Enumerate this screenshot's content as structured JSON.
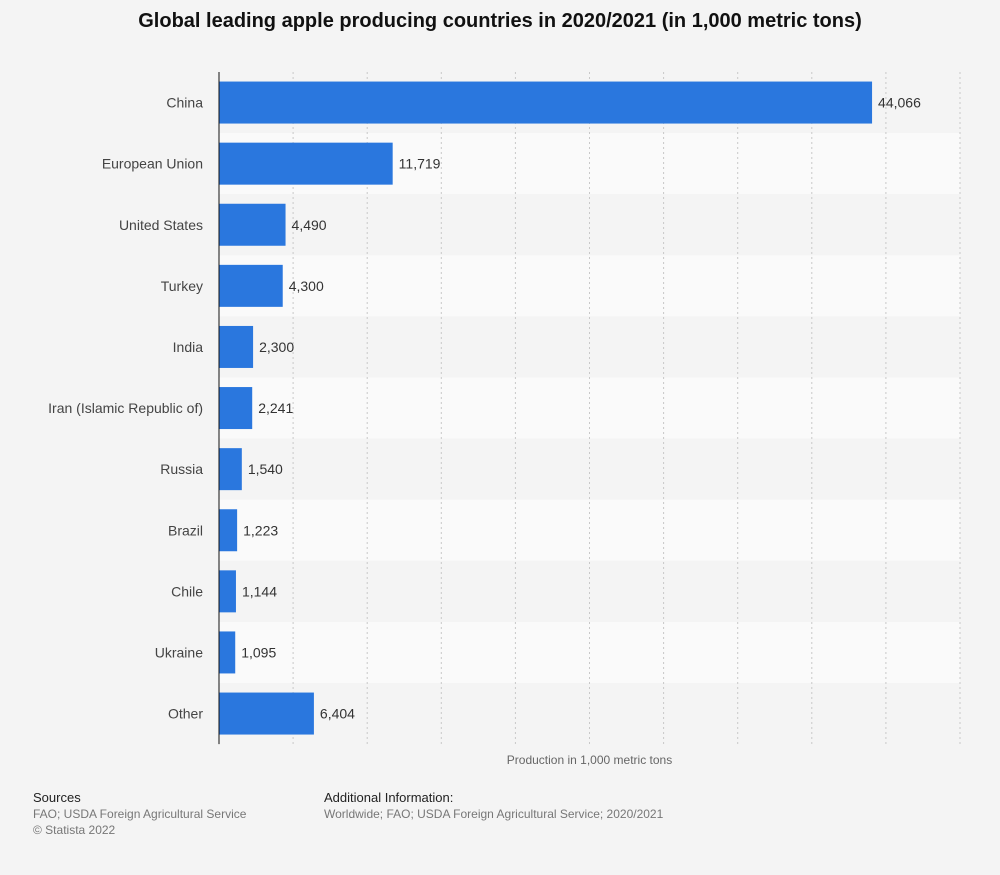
{
  "chart_data": {
    "type": "bar",
    "orientation": "horizontal",
    "title": "Global leading apple producing countries in 2020/2021 (in 1,000 metric tons)",
    "xlabel": "Production in 1,000 metric tons",
    "ylabel": "",
    "categories": [
      "China",
      "European Union",
      "United States",
      "Turkey",
      "India",
      "Iran (Islamic Republic of)",
      "Russia",
      "Brazil",
      "Chile",
      "Ukraine",
      "Other"
    ],
    "values": [
      44066,
      11719,
      4490,
      4300,
      2300,
      2241,
      1540,
      1223,
      1144,
      1095,
      6404
    ],
    "value_labels": [
      "44,066",
      "11,719",
      "4,490",
      "4,300",
      "2,300",
      "2,241",
      "1,540",
      "1,223",
      "1,144",
      "1,095",
      "6,404"
    ],
    "xlim": [
      0,
      50000
    ],
    "grid": true,
    "bar_color": "#2a77de"
  },
  "footer": {
    "sources_heading": "Sources",
    "sources_text": "FAO; USDA Foreign Agricultural Service",
    "copyright": "© Statista 2022",
    "additional_heading": "Additional Information:",
    "additional_text": "Worldwide; FAO; USDA Foreign Agricultural Service; 2020/2021"
  }
}
